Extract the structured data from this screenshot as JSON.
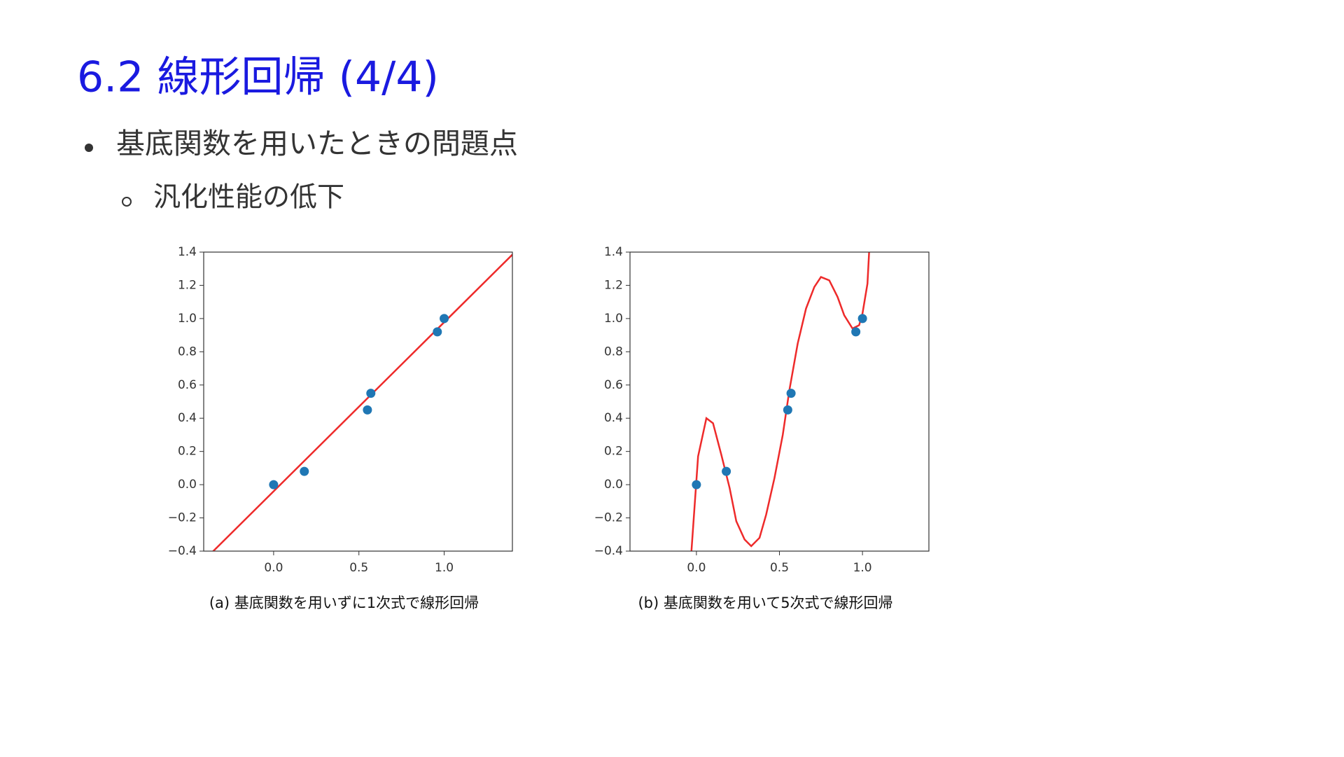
{
  "title": "6.2 線形回帰 (4/4)",
  "bullet": "基底関数を用いたときの問題点",
  "sub_bullet": "汎化性能の低下",
  "chart_data": [
    {
      "type": "scatter",
      "caption": "(a) 基底関数を用いずに1次式で線形回帰",
      "xlim": [
        -0.41,
        1.4
      ],
      "ylim": [
        -0.4,
        1.4
      ],
      "xticks": [
        {
          "value": 0,
          "label": "0.0"
        },
        0.5,
        {
          "value": 1,
          "label": "1.0"
        }
      ],
      "yticks": [
        {
          "value": -0.4,
          "label": "−0.4"
        },
        {
          "value": -0.2,
          "label": "−0.2"
        },
        {
          "value": 0,
          "label": "0.0"
        },
        0.2,
        0.4,
        0.6,
        0.8,
        {
          "value": 1,
          "label": "1.0"
        },
        1.2,
        1.4
      ],
      "series": [
        {
          "type": "line",
          "color": "#ee2a2a",
          "x": [
            -0.4,
            1.4
          ],
          "values": [
            -0.447,
            1.385
          ]
        },
        {
          "type": "scatter",
          "color": "#1f77b4",
          "x": [
            0,
            0.18,
            0.55,
            0.57,
            0.96,
            1.0
          ],
          "values": [
            0,
            0.08,
            0.45,
            0.55,
            0.92,
            1.0
          ]
        }
      ]
    },
    {
      "type": "scatter",
      "caption": "(b) 基底関数を用いて5次式で線形回帰",
      "xlim": [
        -0.4,
        1.4
      ],
      "ylim": [
        -0.4,
        1.4
      ],
      "xticks": [
        {
          "value": 0,
          "label": "0.0"
        },
        0.5,
        {
          "value": 1,
          "label": "1.0"
        }
      ],
      "yticks": [
        {
          "value": -0.4,
          "label": "−0.4"
        },
        {
          "value": -0.2,
          "label": "−0.2"
        },
        {
          "value": 0,
          "label": "0.0"
        },
        0.2,
        0.4,
        0.6,
        0.8,
        {
          "value": 1,
          "label": "1.0"
        },
        1.2,
        1.4
      ],
      "series": [
        {
          "type": "line",
          "color": "#ee2a2a",
          "x": [
            -0.03,
            0.01,
            0.06,
            0.1,
            0.15,
            0.2,
            0.24,
            0.29,
            0.33,
            0.38,
            0.42,
            0.47,
            0.52,
            0.56,
            0.61,
            0.66,
            0.71,
            0.75,
            0.8,
            0.85,
            0.89,
            0.94,
            0.98,
            1.0,
            1.03,
            1.04
          ],
          "values": [
            -0.4,
            0.17,
            0.4,
            0.37,
            0.18,
            -0.02,
            -0.22,
            -0.33,
            -0.37,
            -0.32,
            -0.18,
            0.04,
            0.3,
            0.57,
            0.85,
            1.06,
            1.19,
            1.25,
            1.23,
            1.13,
            1.02,
            0.94,
            0.96,
            1.03,
            1.21,
            1.4
          ]
        },
        {
          "type": "scatter",
          "color": "#1f77b4",
          "x": [
            0,
            0.18,
            0.55,
            0.57,
            0.96,
            1.0
          ],
          "values": [
            0,
            0.08,
            0.45,
            0.55,
            0.92,
            1.0
          ]
        }
      ]
    }
  ]
}
